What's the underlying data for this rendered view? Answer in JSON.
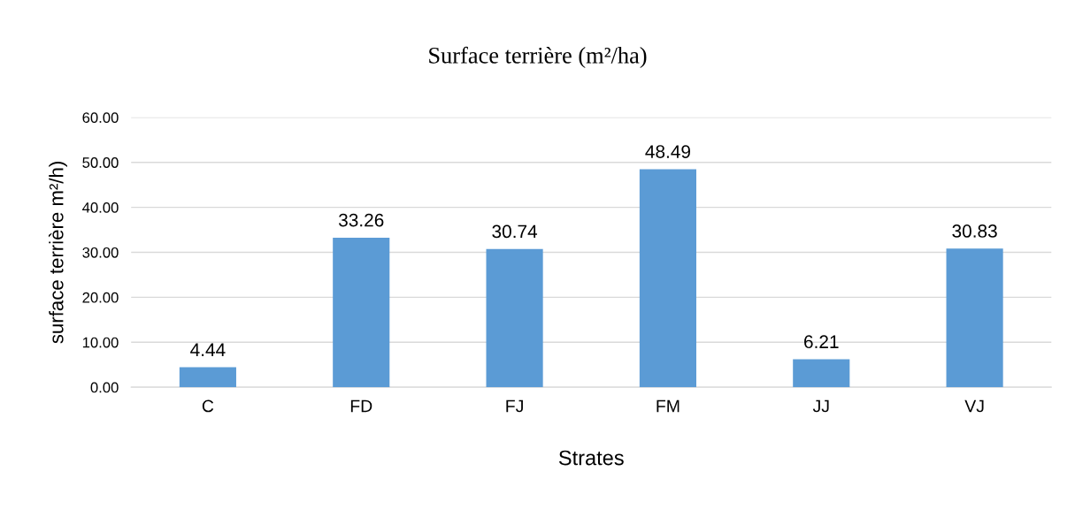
{
  "chart_data": {
    "type": "bar",
    "title": "Surface terrière (m²/ha)",
    "xlabel": "Strates",
    "ylabel": "surface terrière m²/h)",
    "categories": [
      "C",
      "FD",
      "FJ",
      "FM",
      "JJ",
      "VJ"
    ],
    "values": [
      4.44,
      33.26,
      30.74,
      48.49,
      6.21,
      30.83
    ],
    "color": "#5b9bd5",
    "ylim": [
      0,
      60
    ],
    "yticks": [
      {
        "value": 0,
        "label": "0.00"
      },
      {
        "value": 10,
        "label": "10.00"
      },
      {
        "value": 20,
        "label": "20.00"
      },
      {
        "value": 30,
        "label": "30.00"
      },
      {
        "value": 40,
        "label": "40.00"
      },
      {
        "value": 50,
        "label": "50.00"
      },
      {
        "value": 60,
        "label": "60.00"
      }
    ],
    "grid": "y",
    "data_labels": true
  }
}
